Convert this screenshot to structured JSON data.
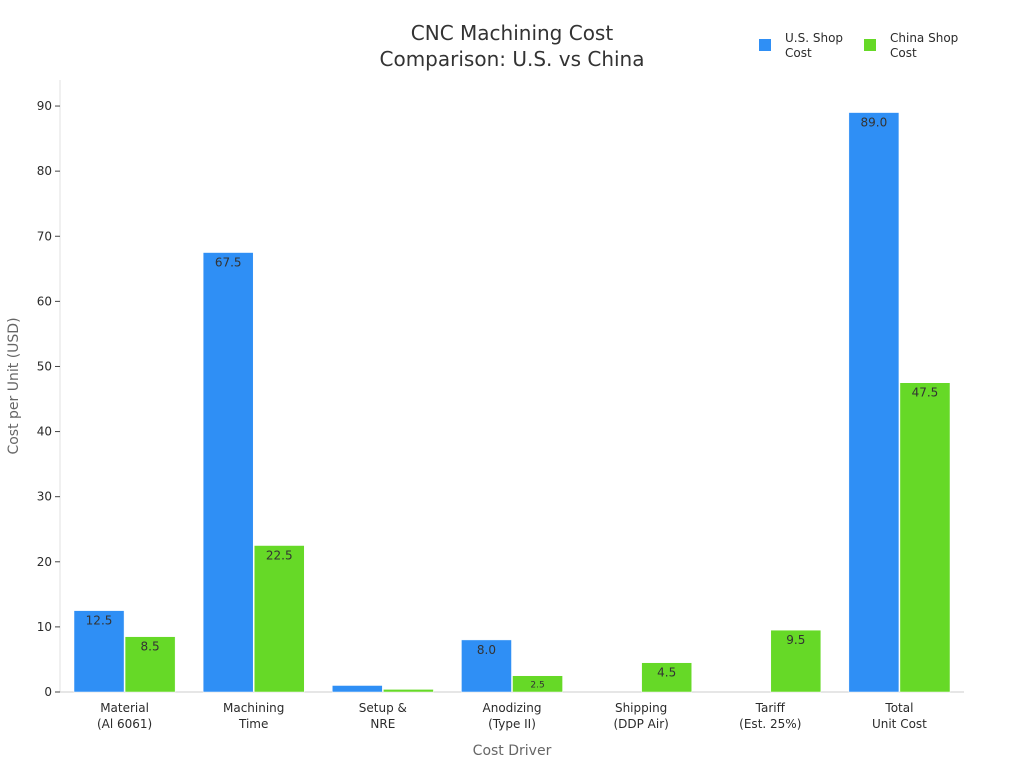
{
  "chart_data": {
    "type": "bar",
    "title": [
      "CNC Machining Cost",
      "Comparison: U.S. vs China"
    ],
    "xlabel": "Cost Driver",
    "ylabel": "Cost per Unit (USD)",
    "ylim": [
      0,
      94
    ],
    "yticks": [
      0,
      10,
      20,
      30,
      40,
      50,
      60,
      70,
      80,
      90
    ],
    "grid": false,
    "legend_position": "top-right",
    "categories": [
      [
        "Material",
        "(Al 6061)"
      ],
      [
        "Machining",
        "Time"
      ],
      [
        "Setup &",
        "NRE"
      ],
      [
        "Anodizing",
        "(Type II)"
      ],
      [
        "Shipping",
        "(DDP Air)"
      ],
      [
        "Tariff",
        "(Est. 25%)"
      ],
      [
        "Total",
        "Unit Cost"
      ]
    ],
    "series": [
      {
        "name": [
          "U.S. Shop",
          "Cost"
        ],
        "color": "#2f8ff5",
        "values": [
          12.5,
          67.5,
          1.0,
          8.0,
          0,
          0,
          89.0
        ],
        "labels": [
          "12.5",
          "67.5",
          "",
          "8.0",
          "",
          "",
          "89.0"
        ]
      },
      {
        "name": [
          "China Shop",
          "Cost"
        ],
        "color": "#66d927",
        "values": [
          8.5,
          22.5,
          0.4,
          2.5,
          4.5,
          9.5,
          47.5
        ],
        "labels": [
          "8.5",
          "22.5",
          "",
          "2.5",
          "4.5",
          "9.5",
          "47.5"
        ]
      }
    ]
  }
}
